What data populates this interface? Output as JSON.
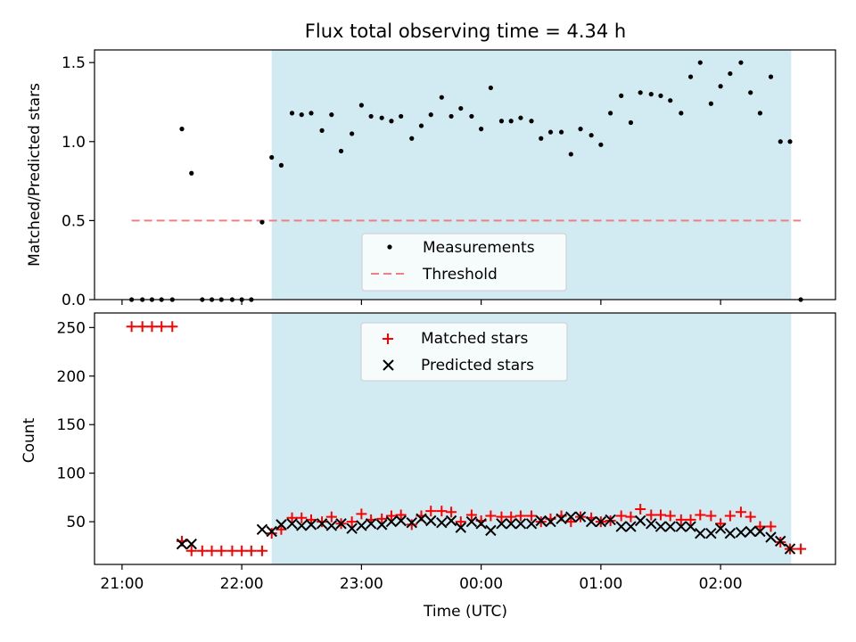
{
  "chart_data": {
    "type": "scatter",
    "title": "Flux total observing time = 4.34 h",
    "xlabel": "Time (UTC)",
    "x_ticks": [
      "21:00",
      "22:00",
      "23:00",
      "00:00",
      "01:00",
      "02:00"
    ],
    "x_tick_hours": [
      21,
      22,
      23,
      24,
      25,
      26
    ],
    "xlim_hours": [
      20.77,
      26.96
    ],
    "observing_window_hours": [
      22.25,
      26.59
    ],
    "colors": {
      "window": "#add8e6",
      "measurements": "#000000",
      "threshold": "#f08080",
      "matched": "#ff0000",
      "predicted": "#000000"
    },
    "panels": [
      {
        "ylabel": "Matched/Predicted stars",
        "ylim": [
          0,
          1.58
        ],
        "y_ticks": [
          "0.0",
          "0.5",
          "1.0",
          "1.5"
        ],
        "y_tick_values": [
          0,
          0.5,
          1.0,
          1.5
        ],
        "legend_position": "bottom-center",
        "threshold": {
          "name": "Threshold",
          "value": 0.5,
          "x_range_hours": [
            21.08,
            26.67
          ]
        },
        "series": [
          {
            "name": "Measurements",
            "marker": "dot",
            "x_hours": [
              21.08,
              21.17,
              21.25,
              21.33,
              21.42,
              21.5,
              21.58,
              21.67,
              21.75,
              21.83,
              21.92,
              22.0,
              22.08,
              22.17,
              22.25,
              22.33,
              22.42,
              22.5,
              22.58,
              22.67,
              22.75,
              22.83,
              22.92,
              23.0,
              23.08,
              23.17,
              23.25,
              23.33,
              23.42,
              23.5,
              23.58,
              23.67,
              23.75,
              23.83,
              23.92,
              24.0,
              24.08,
              24.17,
              24.25,
              24.33,
              24.42,
              24.5,
              24.58,
              24.67,
              24.75,
              24.83,
              24.92,
              25.0,
              25.08,
              25.17,
              25.25,
              25.33,
              25.42,
              25.5,
              25.58,
              25.67,
              25.75,
              25.83,
              25.92,
              26.0,
              26.08,
              26.17,
              26.25,
              26.33,
              26.42,
              26.5,
              26.58,
              26.67
            ],
            "y": [
              0,
              0,
              0,
              0,
              0,
              1.08,
              0.8,
              0,
              0,
              0,
              0,
              0,
              0,
              0.49,
              0.9,
              0.85,
              1.18,
              1.17,
              1.18,
              1.07,
              1.17,
              0.94,
              1.05,
              1.23,
              1.16,
              1.15,
              1.13,
              1.16,
              1.02,
              1.1,
              1.17,
              1.28,
              1.16,
              1.21,
              1.16,
              1.08,
              1.34,
              1.13,
              1.13,
              1.15,
              1.13,
              1.02,
              1.06,
              1.06,
              0.92,
              1.08,
              1.04,
              0.98,
              1.18,
              1.29,
              1.12,
              1.31,
              1.3,
              1.29,
              1.26,
              1.18,
              1.41,
              1.5,
              1.24,
              1.35,
              1.43,
              1.5,
              1.31,
              1.18,
              1.41,
              1.0,
              1.0,
              0
            ]
          }
        ]
      },
      {
        "ylabel": "Count",
        "ylim": [
          6,
          265
        ],
        "y_ticks": [
          "50",
          "100",
          "150",
          "200",
          "250"
        ],
        "y_tick_values": [
          50,
          100,
          150,
          200,
          250
        ],
        "legend_position": "top-center",
        "series": [
          {
            "name": "Matched stars",
            "marker": "plus",
            "x_hours": [
              21.08,
              21.17,
              21.25,
              21.33,
              21.42,
              21.5,
              21.58,
              21.67,
              21.75,
              21.83,
              21.92,
              22.0,
              22.08,
              22.17,
              22.25,
              22.33,
              22.42,
              22.5,
              22.58,
              22.67,
              22.75,
              22.83,
              22.92,
              23.0,
              23.08,
              23.17,
              23.25,
              23.33,
              23.42,
              23.5,
              23.58,
              23.67,
              23.75,
              23.83,
              23.92,
              24.0,
              24.08,
              24.17,
              24.25,
              24.33,
              24.42,
              24.5,
              24.58,
              24.67,
              24.75,
              24.83,
              24.92,
              25.0,
              25.08,
              25.17,
              25.25,
              25.33,
              25.42,
              25.5,
              25.58,
              25.67,
              25.75,
              25.83,
              25.92,
              26.0,
              26.08,
              26.17,
              26.25,
              26.33,
              26.42,
              26.5,
              26.58,
              26.67
            ],
            "y": [
              251,
              251,
              251,
              251,
              251,
              30,
              20,
              20,
              20,
              20,
              20,
              20,
              20,
              20,
              38,
              42,
              54,
              54,
              52,
              50,
              55,
              48,
              50,
              58,
              52,
              53,
              56,
              57,
              47,
              56,
              61,
              61,
              60,
              50,
              57,
              51,
              56,
              55,
              55,
              56,
              56,
              50,
              53,
              56,
              50,
              55,
              54,
              50,
              51,
              56,
              55,
              63,
              57,
              57,
              56,
              52,
              52,
              57,
              56,
              48,
              56,
              60,
              55,
              45,
              45,
              29,
              22,
              22
            ]
          },
          {
            "name": "Predicted stars",
            "marker": "x",
            "x_hours": [
              21.5,
              21.58,
              22.17,
              22.25,
              22.33,
              22.42,
              22.5,
              22.58,
              22.67,
              22.75,
              22.83,
              22.92,
              23.0,
              23.08,
              23.17,
              23.25,
              23.33,
              23.42,
              23.5,
              23.58,
              23.67,
              23.75,
              23.83,
              23.92,
              24.0,
              24.08,
              24.17,
              24.25,
              24.33,
              24.42,
              24.5,
              24.58,
              24.67,
              24.75,
              24.83,
              24.92,
              25.0,
              25.08,
              25.17,
              25.25,
              25.33,
              25.42,
              25.5,
              25.58,
              25.67,
              25.75,
              25.83,
              25.92,
              26.0,
              26.08,
              26.17,
              26.25,
              26.33,
              26.42,
              26.5,
              26.58
            ],
            "y": [
              27,
              27,
              42,
              40,
              47,
              48,
              46,
              47,
              48,
              46,
              48,
              43,
              46,
              48,
              47,
              50,
              51,
              49,
              53,
              51,
              49,
              51,
              44,
              50,
              48,
              41,
              48,
              48,
              48,
              48,
              51,
              50,
              53,
              55,
              55,
              50,
              50,
              52,
              45,
              45,
              51,
              48,
              45,
              45,
              45,
              45,
              38,
              38,
              43,
              38,
              39,
              40,
              40,
              34,
              30,
              22
            ]
          }
        ]
      }
    ]
  }
}
